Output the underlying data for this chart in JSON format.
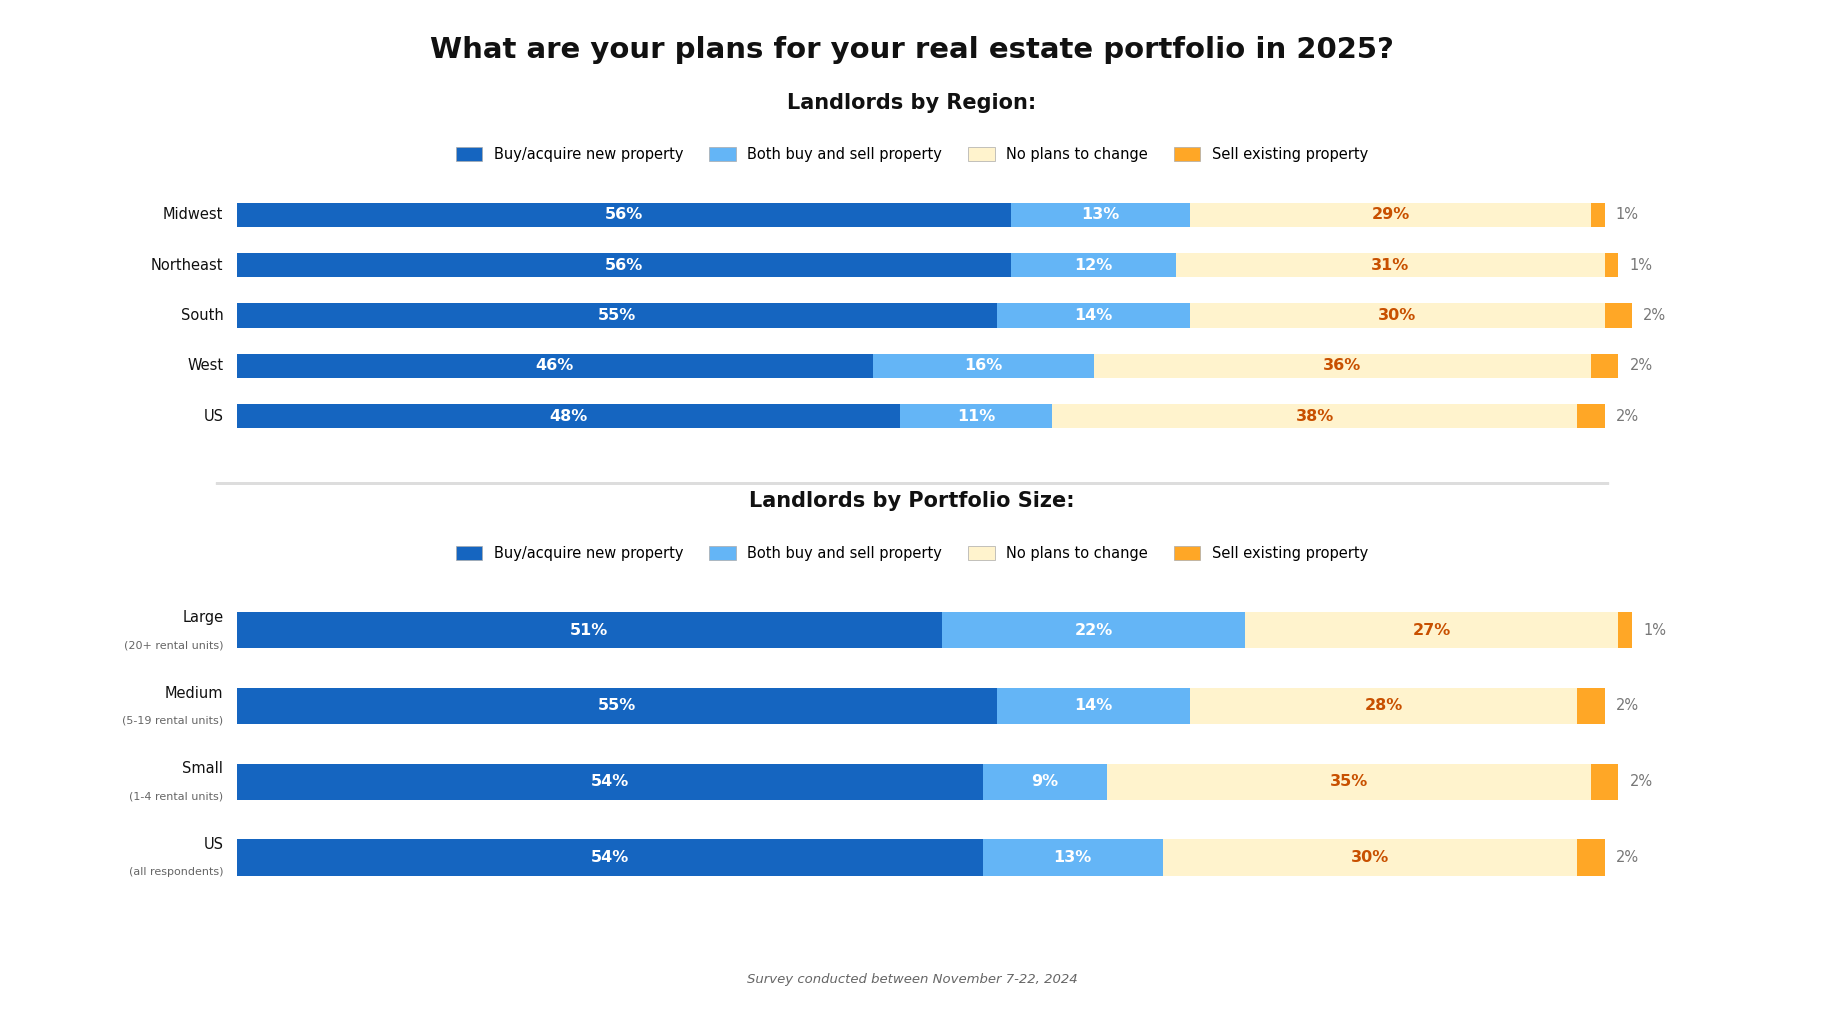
{
  "title": "What are your plans for your real estate portfolio in 2025?",
  "bg_color": "#ffffff",
  "section1_title": "Landlords by Region:",
  "region_categories": [
    "Midwest",
    "Northeast",
    "South",
    "West",
    "US"
  ],
  "region_data": {
    "buy": [
      56,
      56,
      55,
      46,
      48
    ],
    "both": [
      13,
      12,
      14,
      16,
      11
    ],
    "no_change": [
      29,
      31,
      30,
      36,
      38
    ],
    "sell": [
      1,
      1,
      2,
      2,
      2
    ]
  },
  "section2_title": "Landlords by Portfolio Size:",
  "portfolio_categories_short": [
    "Large",
    "Medium",
    "Small",
    "US"
  ],
  "portfolio_sublabels": [
    "(20+ rental units)",
    "(5-19 rental units)",
    "(1-4 rental units)",
    "(all respondents)"
  ],
  "portfolio_data": {
    "buy": [
      51,
      55,
      54,
      54
    ],
    "both": [
      22,
      14,
      9,
      13
    ],
    "no_change": [
      27,
      28,
      35,
      30
    ],
    "sell": [
      1,
      2,
      2,
      2
    ]
  },
  "legend_labels": [
    "Buy/acquire new property",
    "Both buy and sell property",
    "No plans to change",
    "Sell existing property"
  ],
  "colors": {
    "buy": "#1565C0",
    "both": "#64B5F6",
    "no_change": "#FFF3CD",
    "sell": "#FFA726"
  },
  "buy_text_color": "#ffffff",
  "both_text_color": "#ffffff",
  "no_change_text_color": "#C85000",
  "sell_text_color": "#777777",
  "footnote": "Survey conducted between November 7-22, 2024"
}
